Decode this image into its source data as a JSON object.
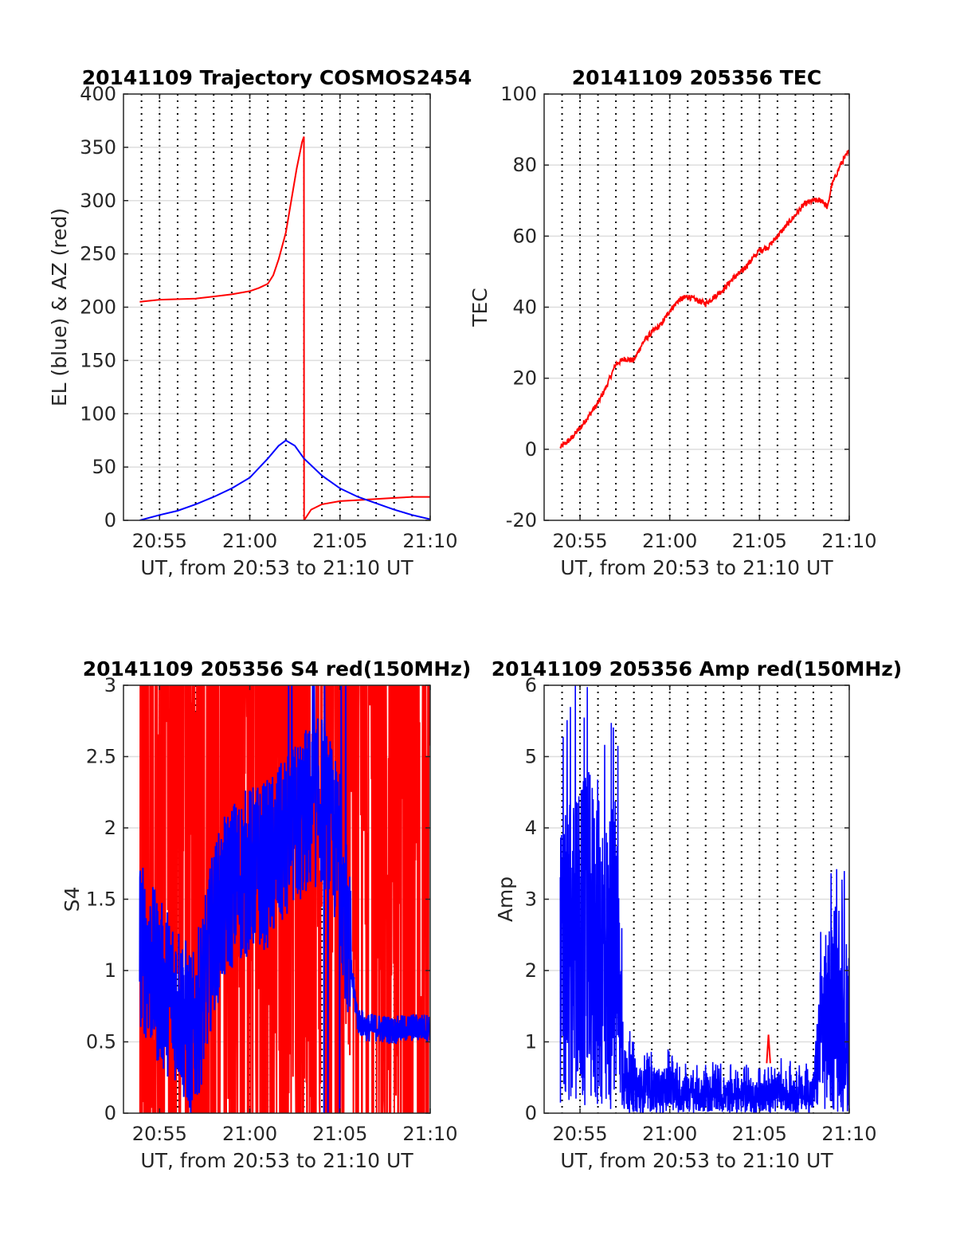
{
  "figure": {
    "xlabel": "UT, from 20:53 to 21:10 UT",
    "xticks": [
      "20:55",
      "21:00",
      "21:05",
      "21:10"
    ],
    "colors": {
      "red": "#ff0000",
      "blue": "#0000ff",
      "axes": "#262626",
      "grid": "#dedede"
    }
  },
  "chart_data": [
    {
      "id": "trajectory",
      "type": "line",
      "title": "20141109 Trajectory COSMOS2454",
      "xlabel": "UT, from 20:53 to 21:10 UT",
      "ylabel": "EL (blue) & AZ (red)",
      "x_units": "minutes after 20:53 UT",
      "xlim": [
        0,
        17
      ],
      "ylim": [
        0,
        400
      ],
      "yticks": [
        "0",
        "50",
        "100",
        "150",
        "200",
        "250",
        "300",
        "350",
        "400"
      ],
      "series": [
        {
          "color": "#ff0000",
          "x": [
            0.9,
            2,
            4,
            5,
            6,
            7,
            7.5,
            8,
            8.3,
            8.6,
            9,
            9.3,
            9.6,
            9.9,
            10.0,
            10.01,
            10.4,
            11,
            12,
            13,
            14,
            15,
            16,
            17
          ],
          "y": [
            205,
            207,
            208,
            210,
            212,
            215,
            218,
            222,
            230,
            245,
            270,
            300,
            330,
            355,
            360,
            0,
            10,
            15,
            18,
            19,
            20,
            21,
            22,
            22
          ]
        },
        {
          "color": "#0000ff",
          "x": [
            0.9,
            2,
            3,
            4,
            5,
            6,
            7,
            8,
            8.6,
            9,
            9.5,
            10,
            11,
            12,
            13,
            14,
            15,
            16,
            17
          ],
          "y": [
            0,
            5,
            9,
            15,
            22,
            30,
            40,
            58,
            70,
            75,
            70,
            58,
            42,
            30,
            22,
            16,
            10,
            5,
            1
          ]
        }
      ]
    },
    {
      "id": "tec",
      "type": "line",
      "title": "20141109 205356 TEC",
      "xlabel": "UT, from 20:53 to 21:10 UT",
      "ylabel": "TEC",
      "x_units": "minutes after 20:53 UT",
      "xlim": [
        0,
        17
      ],
      "ylim": [
        -20,
        100
      ],
      "yticks": [
        "-20",
        "0",
        "20",
        "40",
        "60",
        "80",
        "100"
      ],
      "series": [
        {
          "color": "#ff0000",
          "x": [
            0.9,
            1.5,
            2,
            3,
            3.5,
            4,
            4.5,
            5,
            5.5,
            6,
            6.5,
            7,
            7.5,
            8,
            8.5,
            9,
            9.5,
            10,
            10.5,
            11,
            11.5,
            12,
            12.5,
            13,
            13.5,
            14,
            14.5,
            15,
            15.5,
            15.8,
            16,
            16.5,
            17
          ],
          "y": [
            0.5,
            3,
            6,
            13,
            18,
            24,
            25.5,
            25,
            30,
            33,
            35,
            39,
            42,
            43,
            42,
            41,
            43,
            45,
            48,
            50,
            53,
            56,
            57,
            60,
            63,
            66,
            69,
            70,
            70,
            68,
            74,
            80,
            84
          ]
        }
      ]
    },
    {
      "id": "s4",
      "type": "line",
      "title": "20141109 205356 S4 red(150MHz)",
      "xlabel": "UT, from 20:53 to 21:10 UT",
      "ylabel": "S4",
      "x_units": "minutes after 20:53 UT",
      "xlim": [
        0,
        17
      ],
      "ylim": [
        0,
        3
      ],
      "yticks": [
        "0",
        "0.5",
        "1",
        "1.5",
        "2",
        "2.5",
        "3"
      ],
      "series": [
        {
          "color": "#ff0000",
          "x": [
            0.9,
            17
          ],
          "y_range": [
            0,
            3
          ],
          "note": "saturated noisy trace"
        },
        {
          "color": "#0000ff",
          "x": [
            0.9,
            2,
            3,
            3.8,
            4.5,
            5,
            6,
            7,
            8,
            9,
            10,
            11,
            12,
            12.5,
            13,
            13.5,
            14,
            15,
            16,
            17
          ],
          "y": [
            1.2,
            0.9,
            0.8,
            0.5,
            0.9,
            1.3,
            1.6,
            1.7,
            1.75,
            1.9,
            2.1,
            2.2,
            1.8,
            1.1,
            0.65,
            0.6,
            0.6,
            0.58,
            0.6,
            0.6
          ]
        }
      ]
    },
    {
      "id": "amp",
      "type": "line",
      "title": "20141109 205356 Amp red(150MHz)",
      "xlabel": "UT, from 20:53 to 21:10 UT",
      "ylabel": "Amp",
      "x_units": "minutes after 20:53 UT",
      "xlim": [
        0,
        17
      ],
      "ylim": [
        0,
        6
      ],
      "yticks": [
        "0",
        "1",
        "2",
        "3",
        "4",
        "5",
        "6"
      ],
      "series": [
        {
          "color": "#ff0000",
          "x": [
            12.4,
            12.5,
            12.6
          ],
          "y": [
            0.7,
            1.1,
            0.7
          ]
        },
        {
          "color": "#0000ff",
          "x": [
            0.9,
            1.5,
            2,
            2.5,
            3,
            3.5,
            4,
            4.5,
            5,
            5.5,
            6,
            6.5,
            7,
            7.5,
            8,
            8.5,
            9,
            9.5,
            10,
            10.5,
            11,
            11.5,
            12,
            12.5,
            13,
            13.5,
            14,
            14.5,
            15,
            15.5,
            16,
            16.5,
            17
          ],
          "y": [
            4.0,
            4.4,
            4.6,
            4.8,
            4.7,
            4.2,
            4.5,
            0.9,
            0.8,
            0.6,
            0.7,
            0.6,
            0.7,
            0.5,
            0.6,
            0.5,
            0.5,
            0.6,
            0.45,
            0.5,
            0.5,
            0.5,
            0.45,
            0.5,
            0.6,
            0.5,
            0.6,
            0.5,
            0.55,
            2.5,
            2.6,
            2.4,
            2.5
          ]
        }
      ]
    }
  ]
}
